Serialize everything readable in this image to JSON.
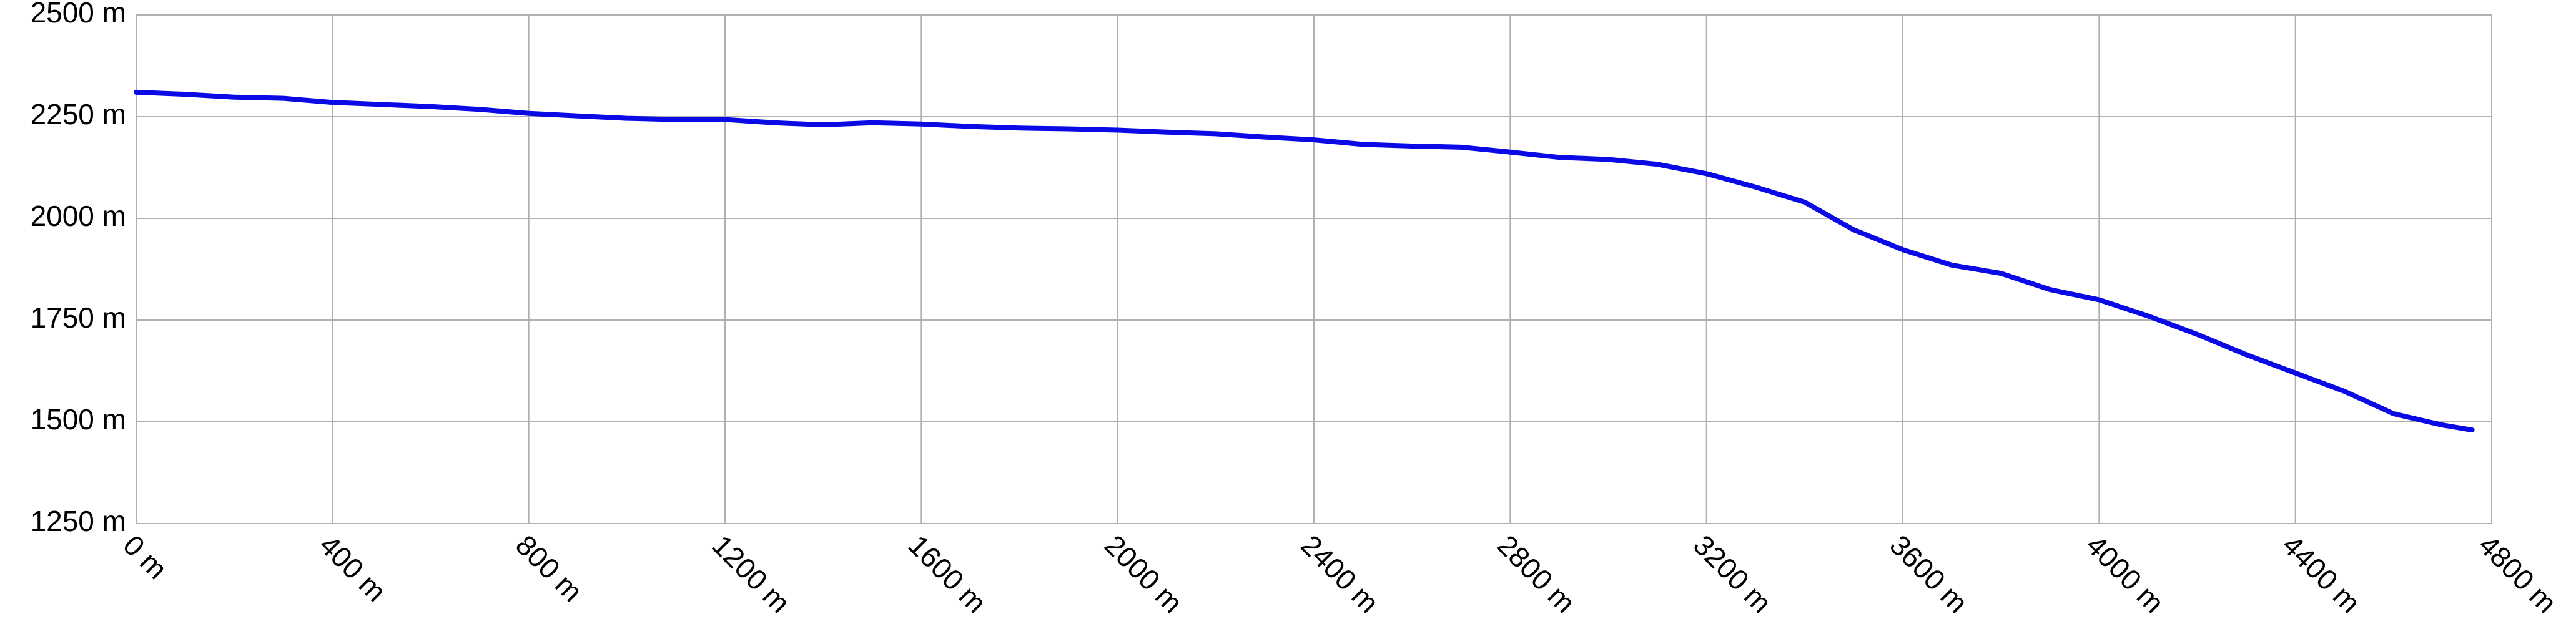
{
  "chart_data": {
    "type": "line",
    "x": [
      0,
      100,
      200,
      300,
      400,
      500,
      600,
      700,
      800,
      900,
      1000,
      1100,
      1200,
      1300,
      1400,
      1500,
      1600,
      1700,
      1800,
      1900,
      2000,
      2100,
      2200,
      2300,
      2400,
      2500,
      2600,
      2700,
      2800,
      2900,
      3000,
      3100,
      3200,
      3300,
      3400,
      3500,
      3600,
      3700,
      3800,
      3900,
      4000,
      4100,
      4200,
      4300,
      4400,
      4500,
      4600,
      4700,
      4760
    ],
    "values": [
      2310,
      2305,
      2298,
      2295,
      2285,
      2280,
      2275,
      2268,
      2258,
      2252,
      2246,
      2243,
      2243,
      2235,
      2230,
      2235,
      2232,
      2226,
      2222,
      2220,
      2217,
      2212,
      2208,
      2200,
      2193,
      2182,
      2178,
      2175,
      2163,
      2150,
      2145,
      2133,
      2110,
      2077,
      2040,
      1972,
      1923,
      1885,
      1865,
      1825,
      1800,
      1760,
      1715,
      1665,
      1620,
      1575,
      1520,
      1492,
      1480
    ],
    "color": "#0a0ae6",
    "xlim": [
      0,
      4800
    ],
    "ylim": [
      1250,
      2500
    ],
    "xticks": [
      {
        "value": 0,
        "label": "0 m"
      },
      {
        "value": 400,
        "label": "400 m"
      },
      {
        "value": 800,
        "label": "800 m"
      },
      {
        "value": 1200,
        "label": "1200 m"
      },
      {
        "value": 1600,
        "label": "1600 m"
      },
      {
        "value": 2000,
        "label": "2000 m"
      },
      {
        "value": 2400,
        "label": "2400 m"
      },
      {
        "value": 2800,
        "label": "2800 m"
      },
      {
        "value": 3200,
        "label": "3200 m"
      },
      {
        "value": 3600,
        "label": "3600 m"
      },
      {
        "value": 4000,
        "label": "4000 m"
      },
      {
        "value": 4400,
        "label": "4400 m"
      },
      {
        "value": 4800,
        "label": "4800 m"
      }
    ],
    "yticks": [
      {
        "value": 1250,
        "label": "1250 m"
      },
      {
        "value": 1500,
        "label": "1500 m"
      },
      {
        "value": 1750,
        "label": "1750 m"
      },
      {
        "value": 2000,
        "label": "2000 m"
      },
      {
        "value": 2250,
        "label": "2250 m"
      },
      {
        "value": 2500,
        "label": "2500 m"
      }
    ],
    "grid": true
  }
}
